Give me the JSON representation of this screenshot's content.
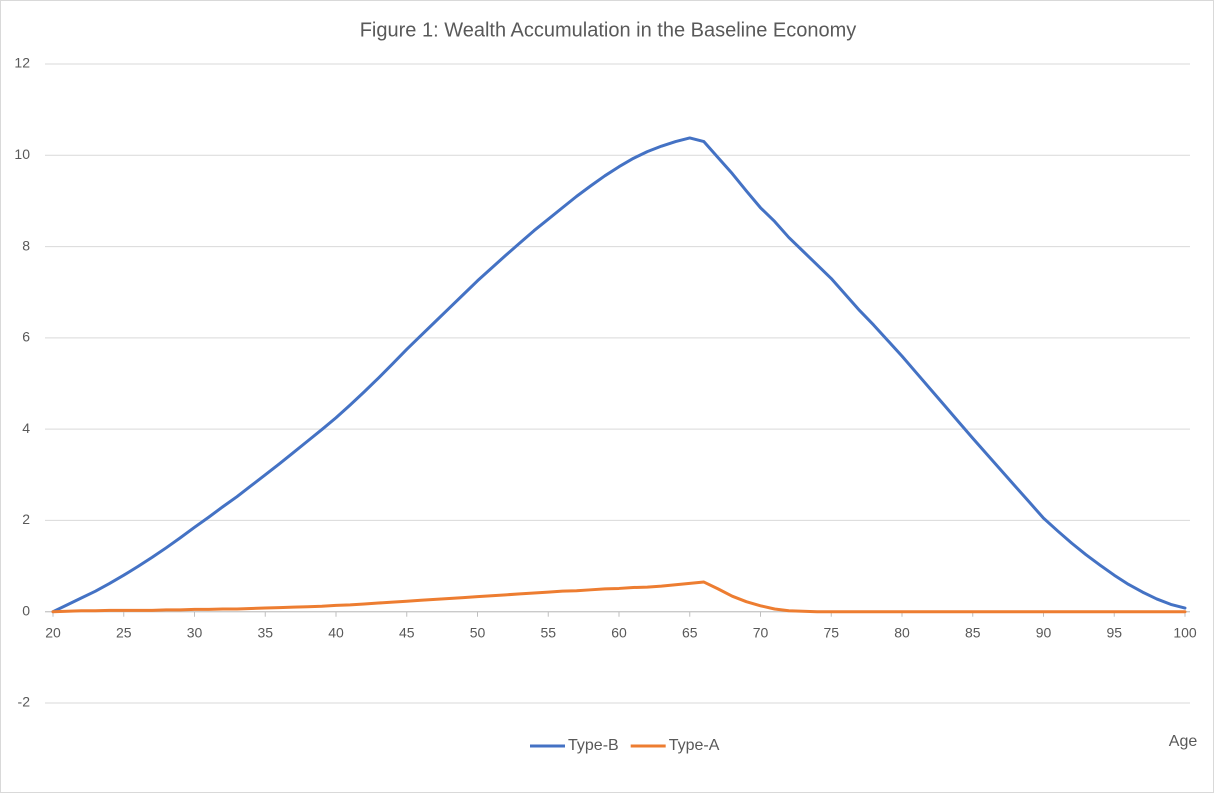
{
  "chart_data": {
    "type": "line",
    "title": "Figure 1: Wealth Accumulation in the Baseline Economy",
    "x_label": "Age",
    "x": [
      20,
      21,
      22,
      23,
      24,
      25,
      26,
      27,
      28,
      29,
      30,
      31,
      32,
      33,
      34,
      35,
      36,
      37,
      38,
      39,
      40,
      41,
      42,
      43,
      44,
      45,
      46,
      47,
      48,
      49,
      50,
      51,
      52,
      53,
      54,
      55,
      56,
      57,
      58,
      59,
      60,
      61,
      62,
      63,
      64,
      65,
      66,
      67,
      68,
      69,
      70,
      71,
      72,
      73,
      74,
      75,
      76,
      77,
      78,
      79,
      80,
      81,
      82,
      83,
      84,
      85,
      86,
      87,
      88,
      89,
      90,
      91,
      92,
      93,
      94,
      95,
      96,
      97,
      98,
      99,
      100
    ],
    "series": [
      {
        "name": "Type-B",
        "color": "#4472c4",
        "values": [
          0,
          0.15,
          0.3,
          0.45,
          0.62,
          0.8,
          0.99,
          1.19,
          1.4,
          1.62,
          1.85,
          2.07,
          2.3,
          2.52,
          2.76,
          3.0,
          3.24,
          3.49,
          3.74,
          3.99,
          4.25,
          4.53,
          4.82,
          5.12,
          5.43,
          5.75,
          6.05,
          6.35,
          6.65,
          6.95,
          7.25,
          7.53,
          7.81,
          8.08,
          8.35,
          8.6,
          8.85,
          9.1,
          9.33,
          9.55,
          9.75,
          9.93,
          10.08,
          10.2,
          10.3,
          10.38,
          10.3,
          9.95,
          9.6,
          9.22,
          8.85,
          8.55,
          8.2,
          7.9,
          7.6,
          7.3,
          6.95,
          6.6,
          6.28,
          5.94,
          5.6,
          5.24,
          4.88,
          4.52,
          4.16,
          3.8,
          3.45,
          3.1,
          2.75,
          2.4,
          2.05,
          1.77,
          1.5,
          1.25,
          1.02,
          0.8,
          0.6,
          0.43,
          0.28,
          0.16,
          0.08
        ]
      },
      {
        "name": "Type-A",
        "color": "#ed7d31",
        "values": [
          0,
          0.01,
          0.02,
          0.02,
          0.03,
          0.03,
          0.03,
          0.03,
          0.04,
          0.04,
          0.05,
          0.05,
          0.06,
          0.06,
          0.07,
          0.08,
          0.09,
          0.1,
          0.11,
          0.12,
          0.14,
          0.15,
          0.17,
          0.19,
          0.21,
          0.23,
          0.25,
          0.27,
          0.29,
          0.31,
          0.33,
          0.35,
          0.37,
          0.39,
          0.41,
          0.43,
          0.45,
          0.46,
          0.48,
          0.5,
          0.51,
          0.53,
          0.54,
          0.56,
          0.59,
          0.62,
          0.65,
          0.5,
          0.34,
          0.22,
          0.13,
          0.06,
          0.02,
          0.01,
          0,
          0,
          0,
          0,
          0,
          0,
          0,
          0,
          0,
          0,
          0,
          0,
          0,
          0,
          0,
          0,
          0,
          0,
          0,
          0,
          0,
          0,
          0,
          0,
          0,
          0,
          0
        ]
      }
    ],
    "xlim": [
      20,
      100
    ],
    "xticks": [
      20,
      25,
      30,
      35,
      40,
      45,
      50,
      55,
      60,
      65,
      70,
      75,
      80,
      85,
      90,
      95,
      100
    ],
    "ylim": [
      -2,
      12
    ],
    "yticks": [
      -2,
      0,
      2,
      4,
      6,
      8,
      10,
      12
    ],
    "grid": true,
    "legend": "bottom"
  }
}
